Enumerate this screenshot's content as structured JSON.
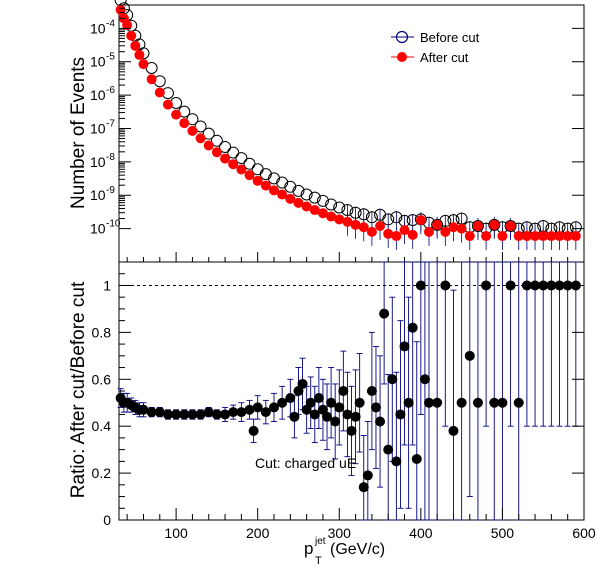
{
  "chart_data": [
    {
      "type": "scatter",
      "panel": "top",
      "ylabel": "Number of Events",
      "xlabel": "",
      "yscale": "log",
      "xlim": [
        30,
        600
      ],
      "ylim_exponent": [
        -11,
        -3.3
      ],
      "y_tick_labels": [
        {
          "base": "10",
          "exp": "-4",
          "value": 0.0001
        },
        {
          "base": "10",
          "exp": "-5",
          "value": 1e-05
        },
        {
          "base": "10",
          "exp": "-6",
          "value": 1e-06
        },
        {
          "base": "10",
          "exp": "-7",
          "value": 1e-07
        },
        {
          "base": "10",
          "exp": "-8",
          "value": 1e-08
        },
        {
          "base": "10",
          "exp": "-9",
          "value": 1e-09
        },
        {
          "base": "10",
          "exp": "-10",
          "value": 1e-10
        }
      ],
      "legend": {
        "placement": "top-right",
        "entries": [
          {
            "label": "Before cut",
            "marker": "open-circle",
            "color": "#000080"
          },
          {
            "label": "After cut",
            "marker": "filled-circle",
            "color": "#ff0000"
          }
        ]
      },
      "series": [
        {
          "name": "Before cut",
          "marker": "open-circle",
          "color": "#000000",
          "x": [
            32,
            36,
            40,
            45,
            50,
            55,
            60,
            70,
            80,
            90,
            100,
            110,
            120,
            130,
            140,
            150,
            160,
            170,
            180,
            190,
            200,
            210,
            220,
            230,
            240,
            250,
            260,
            270,
            280,
            290,
            300,
            310,
            320,
            330,
            340,
            350,
            360,
            370,
            380,
            390,
            400,
            410,
            420,
            430,
            440,
            450,
            460,
            470,
            480,
            490,
            500,
            510,
            520,
            530,
            540,
            550,
            560,
            570,
            580,
            590
          ],
          "y": [
            0.0007,
            0.0004,
            0.00025,
            0.00012,
            6e-05,
            3.3e-05,
            1.8e-05,
            6.5e-06,
            2.6e-06,
            1.15e-06,
            5.8e-07,
            3.2e-07,
            1.9e-07,
            1.15e-07,
            7e-08,
            4.3e-08,
            2.8e-08,
            1.9e-08,
            1.3e-08,
            8.8e-09,
            6e-09,
            4.3e-09,
            3.2e-09,
            2.4e-09,
            1.8e-09,
            1.35e-09,
            1.05e-09,
            8.5e-10,
            6.8e-10,
            5.3e-10,
            4.3e-10,
            3.6e-10,
            3e-10,
            2.7e-10,
            2.2e-10,
            2.6e-10,
            1.9e-10,
            2.2e-10,
            1.7e-10,
            1.8e-10,
            1.9e-10,
            1.5e-10,
            1.3e-10,
            1.7e-10,
            1.8e-10,
            2e-10,
            1.1e-10,
            1.2e-10,
            1e-10,
            1.3e-10,
            1.1e-10,
            1.2e-10,
            1e-10,
            1.1e-10,
            1e-10,
            1.2e-10,
            1e-10,
            1.1e-10,
            1e-10,
            1.1e-10
          ]
        },
        {
          "name": "After cut",
          "marker": "filled-circle",
          "color": "#ff0000",
          "x": [
            32,
            36,
            40,
            45,
            50,
            55,
            60,
            70,
            80,
            90,
            100,
            110,
            120,
            130,
            140,
            150,
            160,
            170,
            180,
            190,
            200,
            210,
            220,
            230,
            240,
            250,
            260,
            270,
            280,
            290,
            300,
            310,
            320,
            330,
            340,
            350,
            360,
            370,
            380,
            390,
            400,
            410,
            420,
            430,
            440,
            450,
            460,
            470,
            480,
            490,
            500,
            510,
            520,
            530,
            540,
            550,
            560,
            570,
            580,
            590
          ],
          "y": [
            0.00036,
            0.0002,
            0.000125,
            6e-05,
            3e-05,
            1.6e-05,
            8.5e-06,
            3e-06,
            1.2e-06,
            5.2e-07,
            2.6e-07,
            1.45e-07,
            8.5e-08,
            5.1e-08,
            3.1e-08,
            1.95e-08,
            1.25e-08,
            8.5e-09,
            5.9e-09,
            4e-09,
            2.7e-09,
            1.95e-09,
            1.4e-09,
            1.05e-09,
            7.8e-10,
            5.9e-10,
            4.6e-10,
            3.6e-10,
            2.9e-10,
            2.3e-10,
            1.9e-10,
            1.6e-10,
            1.3e-10,
            1.1e-10,
            8e-11,
            1.2e-10,
            7e-11,
            6e-11,
            9e-11,
            6.5e-11,
            1.8e-10,
            8e-11,
            1.3e-10,
            8e-11,
            1.1e-10,
            1e-10,
            6e-11,
            1.2e-10,
            6e-11,
            1.3e-10,
            6e-11,
            1.2e-10,
            6e-11,
            6e-11,
            6e-11,
            6e-11,
            6e-11,
            6e-11,
            6e-11,
            6e-11
          ]
        }
      ]
    },
    {
      "type": "scatter",
      "panel": "bottom",
      "xlabel_main": "p",
      "xlabel_super": "jet",
      "xlabel_sub": "T",
      "xlabel_unit": " (GeV/c)",
      "ylabel": "Ratio: After cut/Before cut",
      "xlim": [
        30,
        600
      ],
      "ylim": [
        0,
        1.1
      ],
      "x_ticks": [
        100,
        200,
        300,
        400,
        500,
        600
      ],
      "y_ticks": [
        0,
        0.2,
        0.4,
        0.6,
        0.8,
        1
      ],
      "y_tick_labels": [
        "0",
        "0.2",
        "0.4",
        "0.6",
        "0.8",
        "1"
      ],
      "x_tick_labels": [
        "100",
        "200",
        "300",
        "400",
        "500",
        "600"
      ],
      "reference_line": 1,
      "annotation": "Cut: charged uE",
      "series": [
        {
          "marker": "filled-circle",
          "color": "#000000",
          "error_color": "#000080",
          "x": [
            32,
            36,
            40,
            45,
            50,
            55,
            60,
            70,
            80,
            90,
            100,
            110,
            120,
            130,
            140,
            150,
            160,
            170,
            180,
            190,
            195,
            200,
            210,
            220,
            230,
            240,
            245,
            250,
            255,
            260,
            265,
            270,
            275,
            280,
            285,
            290,
            295,
            300,
            305,
            310,
            315,
            320,
            325,
            330,
            335,
            340,
            345,
            350,
            355,
            360,
            365,
            370,
            375,
            380,
            385,
            390,
            395,
            400,
            405,
            410,
            420,
            430,
            440,
            450,
            460,
            470,
            480,
            490,
            500,
            510,
            520,
            530,
            540,
            550,
            560,
            570,
            580,
            590
          ],
          "y": [
            0.52,
            0.5,
            0.5,
            0.49,
            0.48,
            0.47,
            0.47,
            0.46,
            0.46,
            0.45,
            0.45,
            0.45,
            0.45,
            0.45,
            0.46,
            0.45,
            0.45,
            0.46,
            0.46,
            0.47,
            0.38,
            0.48,
            0.46,
            0.48,
            0.5,
            0.52,
            0.44,
            0.55,
            0.58,
            0.47,
            0.5,
            0.45,
            0.52,
            0.47,
            0.44,
            0.5,
            0.42,
            0.48,
            0.55,
            0.45,
            0.38,
            0.44,
            0.5,
            0.14,
            0.19,
            0.55,
            0.48,
            0.42,
            0.88,
            0.3,
            0.6,
            0.25,
            0.45,
            0.74,
            0.5,
            0.82,
            0.26,
            1.0,
            0.6,
            0.5,
            0.5,
            1.0,
            0.38,
            0.5,
            0.7,
            0.5,
            1.0,
            0.5,
            0.5,
            1.0,
            0.5,
            1.0,
            1.0,
            1.0,
            1.0,
            1.0,
            1.0,
            1.0
          ],
          "err": [
            0.04,
            0.04,
            0.04,
            0.03,
            0.03,
            0.03,
            0.03,
            0.02,
            0.02,
            0.02,
            0.02,
            0.02,
            0.02,
            0.02,
            0.02,
            0.02,
            0.03,
            0.03,
            0.04,
            0.04,
            0.05,
            0.05,
            0.05,
            0.06,
            0.07,
            0.08,
            0.09,
            0.1,
            0.11,
            0.1,
            0.11,
            0.12,
            0.13,
            0.13,
            0.14,
            0.15,
            0.16,
            0.16,
            0.17,
            0.18,
            0.19,
            0.2,
            0.21,
            0.22,
            0.23,
            0.25,
            0.26,
            0.28,
            0.3,
            0.32,
            0.35,
            0.38,
            0.4,
            0.42,
            0.45,
            0.5,
            0.5,
            0.55,
            0.6,
            0.6,
            0.6,
            0.6,
            0.6,
            0.6,
            0.6,
            0.6,
            0.6,
            0.6,
            0.6,
            0.6,
            0.6,
            0.6,
            0.6,
            0.6,
            0.6,
            0.6,
            0.6,
            0.6
          ]
        }
      ]
    }
  ]
}
